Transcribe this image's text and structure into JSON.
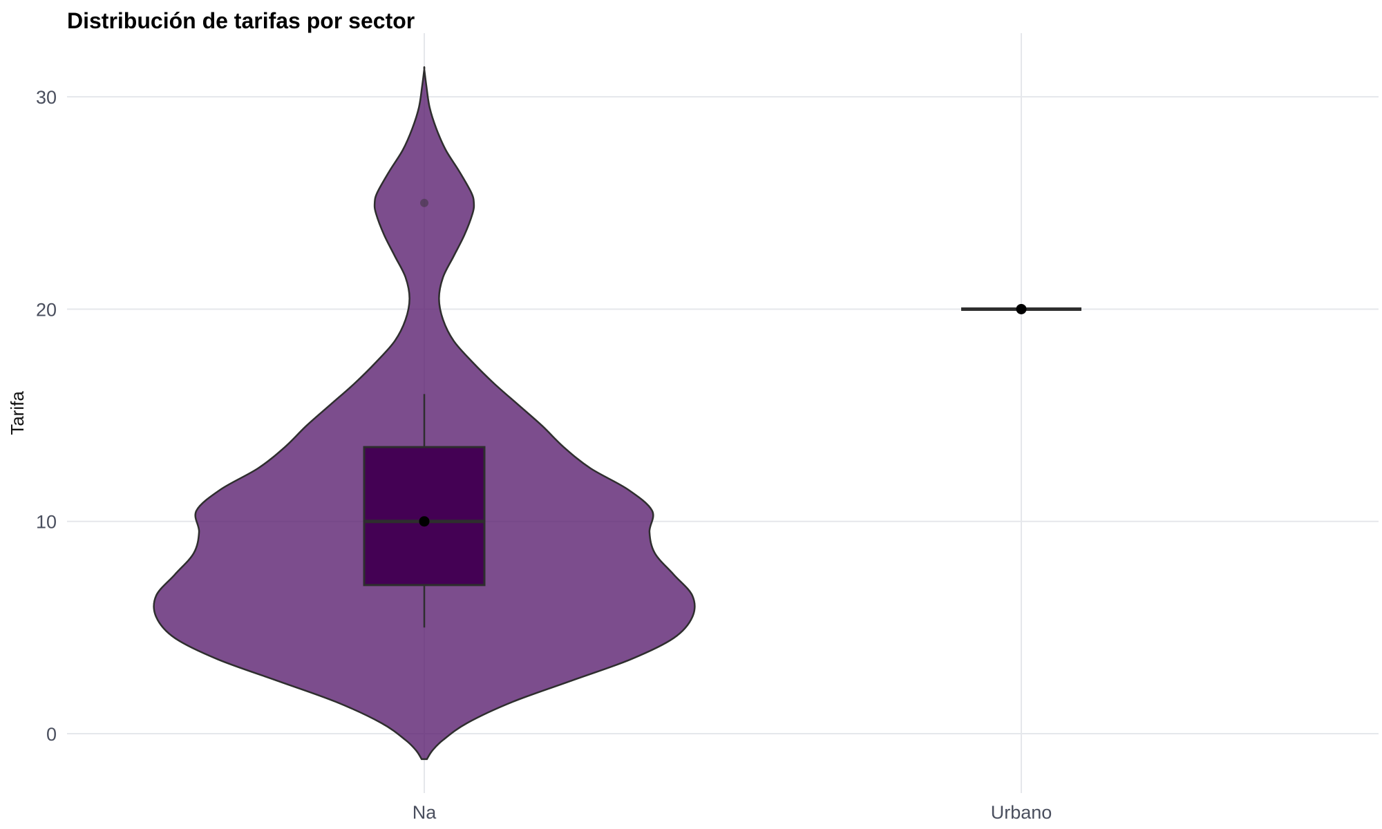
{
  "chart_data": {
    "type": "violin",
    "title": "Distribución de tarifas por sector",
    "xlabel": "",
    "ylabel": "Tarifa",
    "categories": [
      "Na",
      "Urbano"
    ],
    "ylim": [
      -2.8,
      33
    ],
    "y_ticks": [
      0,
      10,
      20,
      30
    ],
    "y_tick_labels": [
      "0",
      "10",
      "20",
      "30"
    ],
    "grid": true,
    "colors": {
      "violin_fill": "#5b2070",
      "violin_opacity": 0.8,
      "box_fill": "#440154",
      "outline": "#2e2e2e",
      "gridline": "#e5e7eb",
      "point": "#000000"
    },
    "groups": [
      {
        "category": "Na",
        "box": {
          "q1": 7,
          "median": 10,
          "q3": 13.5,
          "whisker_low": 5,
          "whisker_high": 16
        },
        "mean": 10,
        "outliers": [
          25
        ],
        "density_range": [
          -1.2,
          31.3
        ],
        "density": [
          [
            -1.2,
            0.01
          ],
          [
            -0.8,
            0.03
          ],
          [
            -0.3,
            0.07
          ],
          [
            0.5,
            0.16
          ],
          [
            1.5,
            0.33
          ],
          [
            2.5,
            0.55
          ],
          [
            3.5,
            0.77
          ],
          [
            4.5,
            0.93
          ],
          [
            5.5,
            1.0
          ],
          [
            6.5,
            1.0
          ],
          [
            7.5,
            0.93
          ],
          [
            8.5,
            0.86
          ],
          [
            9.5,
            0.84
          ],
          [
            10.5,
            0.85
          ],
          [
            11.5,
            0.76
          ],
          [
            12.5,
            0.62
          ],
          [
            13.5,
            0.52
          ],
          [
            14.5,
            0.44
          ],
          [
            15.5,
            0.35
          ],
          [
            16.5,
            0.26
          ],
          [
            17.5,
            0.18
          ],
          [
            18.5,
            0.11
          ],
          [
            19.5,
            0.07
          ],
          [
            20.5,
            0.055
          ],
          [
            21.5,
            0.07
          ],
          [
            22.5,
            0.11
          ],
          [
            23.5,
            0.15
          ],
          [
            24.5,
            0.18
          ],
          [
            25.0,
            0.185
          ],
          [
            25.5,
            0.175
          ],
          [
            26.5,
            0.13
          ],
          [
            27.5,
            0.08
          ],
          [
            28.5,
            0.045
          ],
          [
            29.5,
            0.02
          ],
          [
            30.5,
            0.008
          ],
          [
            31.3,
            0.0
          ]
        ]
      },
      {
        "category": "Urbano",
        "box": {
          "q1": 20,
          "median": 20,
          "q3": 20,
          "whisker_low": 20,
          "whisker_high": 20
        },
        "mean": 20,
        "outliers": [],
        "density_range": [
          20,
          20
        ],
        "density": []
      }
    ]
  }
}
